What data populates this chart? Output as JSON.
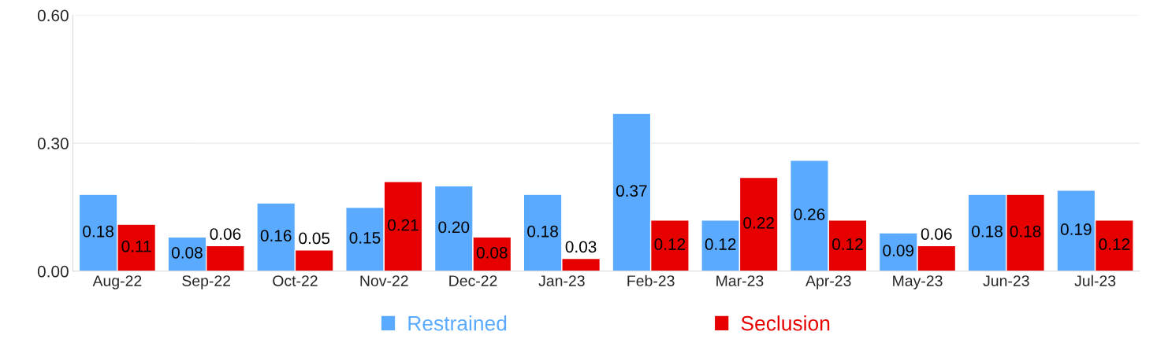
{
  "chart_data": {
    "type": "bar",
    "categories": [
      "Aug-22",
      "Sep-22",
      "Oct-22",
      "Nov-22",
      "Dec-22",
      "Jan-23",
      "Feb-23",
      "Mar-23",
      "Apr-23",
      "May-23",
      "Jun-23",
      "Jul-23"
    ],
    "series": [
      {
        "name": "Restrained",
        "color": "#5aabff",
        "values": [
          0.18,
          0.08,
          0.16,
          0.15,
          0.2,
          0.18,
          0.37,
          0.12,
          0.26,
          0.09,
          0.18,
          0.19
        ],
        "value_labels": [
          "0.18",
          "0.08",
          "0.16",
          "0.15",
          "0.20",
          "0.18",
          "0.37",
          "0.12",
          "0.26",
          "0.09",
          "0.18",
          "0.19"
        ]
      },
      {
        "name": "Seclusion",
        "color": "#e60000",
        "values": [
          0.11,
          0.06,
          0.05,
          0.21,
          0.08,
          0.03,
          0.12,
          0.22,
          0.12,
          0.06,
          0.18,
          0.12
        ],
        "value_labels": [
          "0.11",
          "0.06",
          "0.05",
          "0.21",
          "0.08",
          "0.03",
          "0.12",
          "0.22",
          "0.12",
          "0.06",
          "0.18",
          "0.12"
        ]
      }
    ],
    "ylim": [
      0,
      0.6
    ],
    "yticks": [
      {
        "value": 0,
        "label": "0.00"
      },
      {
        "value": 0.3,
        "label": "0.30"
      },
      {
        "value": 0.6,
        "label": "0.60"
      }
    ],
    "grid": "y",
    "legend": "bottom"
  }
}
